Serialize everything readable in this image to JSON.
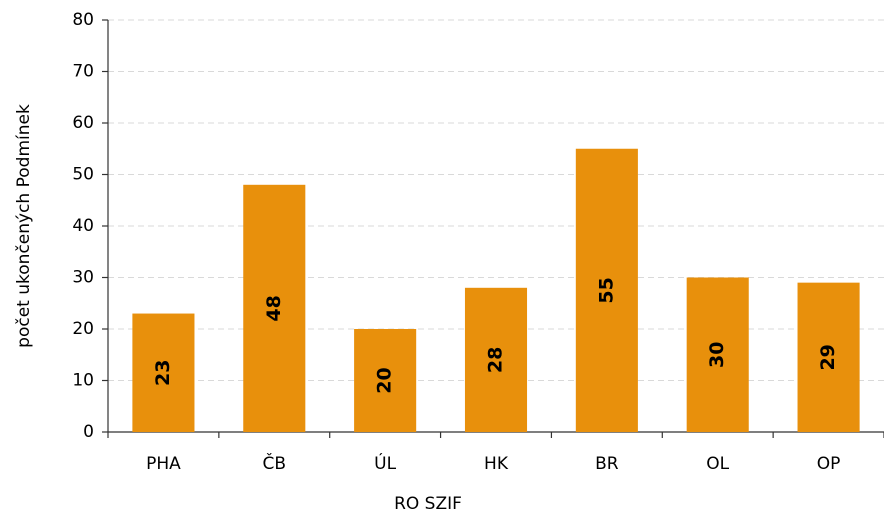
{
  "chart_data": {
    "type": "bar",
    "xlabel": "RO SZIF",
    "ylabel": "počet ukončených Podmínek",
    "categories": [
      "PHA",
      "ČB",
      "ÚL",
      "HK",
      "BR",
      "OL",
      "OP"
    ],
    "values": [
      23,
      48,
      20,
      28,
      55,
      30,
      29
    ],
    "color": "#e8900c",
    "ylim": [
      0,
      80
    ],
    "yticks": [
      0,
      10,
      20,
      30,
      40,
      50,
      60,
      70,
      80
    ],
    "grid": true
  }
}
